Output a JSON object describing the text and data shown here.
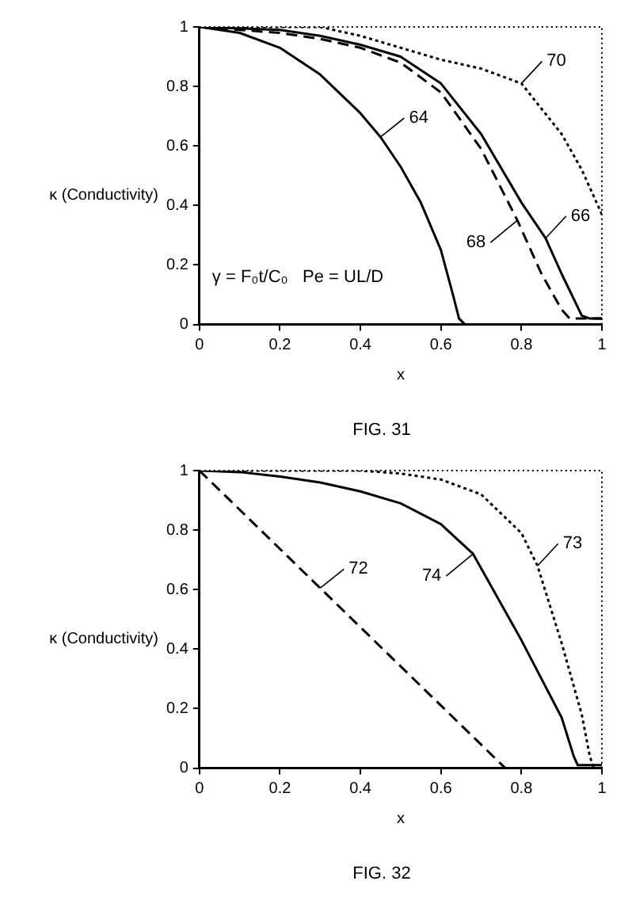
{
  "chart_data": [
    {
      "type": "line",
      "title": "FIG. 31",
      "xlabel": "x",
      "ylabel": "κ (Conductivity)",
      "xlim": [
        0,
        1
      ],
      "ylim": [
        0,
        1
      ],
      "xticks": [
        0,
        0.2,
        0.4,
        0.6,
        0.8,
        1
      ],
      "yticks": [
        0,
        0.2,
        0.4,
        0.6,
        0.8,
        1
      ],
      "grid": false,
      "legend": false,
      "marker": "none",
      "series": [
        {
          "color": "#000000",
          "line_style": "solid",
          "x": [
            0,
            0.1,
            0.2,
            0.3,
            0.4,
            0.45,
            0.5,
            0.55,
            0.6,
            0.63,
            0.645,
            0.66,
            1
          ],
          "values": [
            1,
            0.98,
            0.93,
            0.84,
            0.71,
            0.63,
            0.53,
            0.41,
            0.25,
            0.1,
            0.02,
            0,
            0
          ]
        },
        {
          "color": "#000000",
          "line_style": "solid",
          "x": [
            0,
            0.2,
            0.3,
            0.4,
            0.5,
            0.6,
            0.7,
            0.8,
            0.86,
            0.9,
            0.95,
            0.97,
            1
          ],
          "values": [
            1,
            0.99,
            0.97,
            0.94,
            0.9,
            0.81,
            0.64,
            0.41,
            0.29,
            0.17,
            0.03,
            0.02,
            0.02
          ]
        },
        {
          "color": "#000000",
          "line_style": "dashed",
          "x": [
            0,
            0.2,
            0.3,
            0.4,
            0.5,
            0.6,
            0.7,
            0.79,
            0.85,
            0.9,
            0.92,
            1
          ],
          "values": [
            1,
            0.98,
            0.96,
            0.93,
            0.88,
            0.78,
            0.59,
            0.35,
            0.17,
            0.05,
            0.02,
            0.02
          ]
        },
        {
          "color": "#000000",
          "line_style": "dotted",
          "x": [
            0,
            0.3,
            0.4,
            0.5,
            0.6,
            0.7,
            0.8,
            0.9,
            0.95,
            1
          ],
          "values": [
            1,
            1,
            0.97,
            0.93,
            0.89,
            0.86,
            0.81,
            0.64,
            0.52,
            0.37
          ]
        }
      ],
      "annotations": [
        {
          "text": "64",
          "x": 0.45,
          "y": 0.63
        },
        {
          "text": "66",
          "x": 0.86,
          "y": 0.29
        },
        {
          "text": "68",
          "x": 0.79,
          "y": 0.35
        },
        {
          "text": "70",
          "x": 0.8,
          "y": 0.81
        },
        "γ = F₀t/C₀   Pe = UL/D"
      ]
    },
    {
      "type": "line",
      "title": "FIG. 32",
      "xlabel": "x",
      "ylabel": "κ (Conductivity)",
      "xlim": [
        0,
        1
      ],
      "ylim": [
        0,
        1
      ],
      "xticks": [
        0,
        0.2,
        0.4,
        0.6,
        0.8,
        1
      ],
      "yticks": [
        0,
        0.2,
        0.4,
        0.6,
        0.8,
        1
      ],
      "grid": false,
      "legend": false,
      "marker": "none",
      "series": [
        {
          "color": "#000000",
          "line_style": "dashed",
          "x": [
            0,
            0.76,
            1
          ],
          "values": [
            1,
            0,
            0
          ]
        },
        {
          "color": "#000000",
          "line_style": "solid",
          "x": [
            0,
            0.1,
            0.2,
            0.3,
            0.4,
            0.5,
            0.6,
            0.68,
            0.8,
            0.9,
            0.93,
            0.94,
            1
          ],
          "values": [
            1,
            0.995,
            0.98,
            0.96,
            0.93,
            0.89,
            0.82,
            0.72,
            0.43,
            0.17,
            0.04,
            0.01,
            0.01
          ]
        },
        {
          "color": "#000000",
          "line_style": "dotted",
          "x": [
            0,
            0.4,
            0.5,
            0.6,
            0.7,
            0.8,
            0.84,
            0.9,
            0.95,
            0.97,
            0.98,
            1
          ],
          "values": [
            1,
            1,
            0.99,
            0.97,
            0.92,
            0.79,
            0.68,
            0.42,
            0.18,
            0.04,
            0,
            0
          ]
        }
      ],
      "annotations": [
        {
          "text": "72",
          "x": 0.3,
          "y": 0.605
        },
        {
          "text": "74",
          "x": 0.68,
          "y": 0.72
        },
        {
          "text": "73",
          "x": 0.84,
          "y": 0.68
        }
      ]
    }
  ]
}
